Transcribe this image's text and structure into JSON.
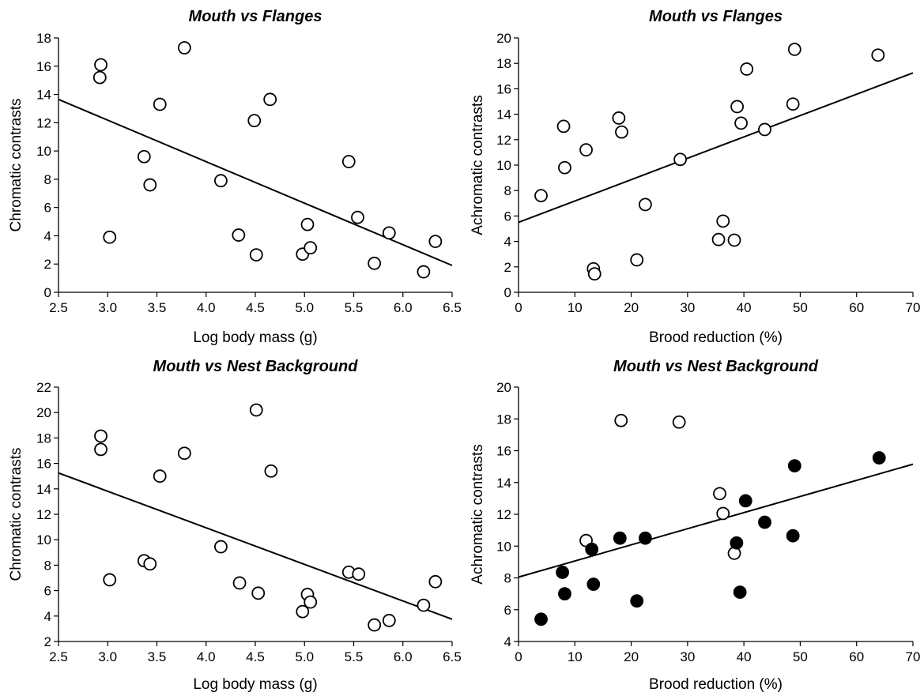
{
  "chart_data": [
    {
      "type": "scatter",
      "title": "Mouth vs Flanges",
      "xlabel": "Log body mass (g)",
      "ylabel": "Chromatic contrasts",
      "xlim": [
        2.5,
        6.5
      ],
      "ylim": [
        0,
        18
      ],
      "xticks": [
        "2.5",
        "3.0",
        "3.5",
        "4.0",
        "4.5",
        "5.0",
        "5.5",
        "6.0",
        "6.5"
      ],
      "yticks": [
        "0",
        "2",
        "4",
        "6",
        "8",
        "10",
        "12",
        "14",
        "16",
        "18"
      ],
      "series": [
        {
          "fill": "open",
          "points": [
            [
              2.93,
              16.1
            ],
            [
              2.92,
              15.2
            ],
            [
              3.02,
              3.9
            ],
            [
              3.37,
              9.6
            ],
            [
              3.43,
              7.6
            ],
            [
              3.53,
              13.3
            ],
            [
              3.78,
              17.3
            ],
            [
              4.15,
              7.9
            ],
            [
              4.33,
              4.05
            ],
            [
              4.49,
              12.15
            ],
            [
              4.51,
              2.65
            ],
            [
              4.65,
              13.65
            ],
            [
              4.98,
              2.7
            ],
            [
              5.03,
              4.8
            ],
            [
              5.06,
              3.15
            ],
            [
              5.45,
              9.25
            ],
            [
              5.54,
              5.3
            ],
            [
              5.71,
              2.05
            ],
            [
              5.86,
              4.2
            ],
            [
              6.21,
              1.45
            ],
            [
              6.33,
              3.6
            ]
          ]
        }
      ],
      "regression": [
        [
          2.5,
          13.65
        ],
        [
          6.5,
          1.9
        ]
      ]
    },
    {
      "type": "scatter",
      "title": "Mouth vs Flanges",
      "xlabel": "Brood reduction (%)",
      "ylabel": "Achromatic contrasts",
      "xlim": [
        0,
        70
      ],
      "ylim": [
        0,
        20
      ],
      "xticks": [
        "0",
        "10",
        "20",
        "30",
        "40",
        "50",
        "60",
        "70"
      ],
      "yticks": [
        "0",
        "2",
        "4",
        "6",
        "8",
        "10",
        "12",
        "14",
        "16",
        "18",
        "20"
      ],
      "series": [
        {
          "fill": "open",
          "points": [
            [
              4,
              7.6
            ],
            [
              8,
              13.05
            ],
            [
              8.2,
              9.8
            ],
            [
              12,
              11.2
            ],
            [
              13.3,
              1.85
            ],
            [
              13.5,
              1.45
            ],
            [
              17.8,
              13.7
            ],
            [
              18.3,
              12.6
            ],
            [
              21,
              2.55
            ],
            [
              22.5,
              6.9
            ],
            [
              28.7,
              10.45
            ],
            [
              35.5,
              4.15
            ],
            [
              36.3,
              5.6
            ],
            [
              38.3,
              4.1
            ],
            [
              38.8,
              14.6
            ],
            [
              39.5,
              13.3
            ],
            [
              40.5,
              17.55
            ],
            [
              43.7,
              12.8
            ],
            [
              48.7,
              14.8
            ],
            [
              49,
              19.1
            ],
            [
              63.8,
              18.65
            ]
          ]
        }
      ],
      "regression": [
        [
          0,
          5.5
        ],
        [
          70,
          17.25
        ]
      ]
    },
    {
      "type": "scatter",
      "title": "Mouth vs Nest Background",
      "xlabel": "Log body mass (g)",
      "ylabel": "Chromatic contrasts",
      "xlim": [
        2.5,
        6.5
      ],
      "ylim": [
        2,
        22
      ],
      "xticks": [
        "2.5",
        "3.0",
        "3.5",
        "4.0",
        "4.5",
        "5.0",
        "5.5",
        "6.0",
        "6.5"
      ],
      "yticks": [
        "2",
        "4",
        "6",
        "8",
        "10",
        "12",
        "14",
        "16",
        "18",
        "20",
        "22"
      ],
      "series": [
        {
          "fill": "open",
          "points": [
            [
              2.93,
              18.15
            ],
            [
              2.93,
              17.1
            ],
            [
              3.02,
              6.85
            ],
            [
              3.37,
              8.35
            ],
            [
              3.43,
              8.1
            ],
            [
              3.53,
              15.0
            ],
            [
              3.78,
              16.8
            ],
            [
              4.15,
              9.45
            ],
            [
              4.34,
              6.6
            ],
            [
              4.51,
              20.2
            ],
            [
              4.53,
              5.8
            ],
            [
              4.66,
              15.4
            ],
            [
              4.98,
              4.35
            ],
            [
              5.03,
              5.7
            ],
            [
              5.06,
              5.1
            ],
            [
              5.45,
              7.45
            ],
            [
              5.55,
              7.3
            ],
            [
              5.71,
              3.3
            ],
            [
              5.86,
              3.65
            ],
            [
              6.21,
              4.85
            ],
            [
              6.33,
              6.7
            ]
          ]
        }
      ],
      "regression": [
        [
          2.5,
          15.25
        ],
        [
          6.5,
          3.75
        ]
      ]
    },
    {
      "type": "scatter",
      "title": "Mouth vs Nest Background",
      "xlabel": "Brood reduction (%)",
      "ylabel": "Achromatic contrasts",
      "xlim": [
        0,
        70
      ],
      "ylim": [
        4,
        20
      ],
      "xticks": [
        "0",
        "10",
        "20",
        "30",
        "40",
        "50",
        "60",
        "70"
      ],
      "yticks": [
        "4",
        "6",
        "8",
        "10",
        "12",
        "14",
        "16",
        "18",
        "20"
      ],
      "series": [
        {
          "fill": "open",
          "points": [
            [
              12,
              10.35
            ],
            [
              18.2,
              17.9
            ],
            [
              28.5,
              17.8
            ],
            [
              35.7,
              13.3
            ],
            [
              36.3,
              12.05
            ],
            [
              38.3,
              9.55
            ]
          ]
        },
        {
          "fill": "filled",
          "points": [
            [
              4,
              5.4
            ],
            [
              7.8,
              8.35
            ],
            [
              8.2,
              7.0
            ],
            [
              13,
              9.8
            ],
            [
              13.3,
              7.6
            ],
            [
              18,
              10.5
            ],
            [
              21,
              6.55
            ],
            [
              22.5,
              10.5
            ],
            [
              38.7,
              10.2
            ],
            [
              39.3,
              7.1
            ],
            [
              40.3,
              12.85
            ],
            [
              43.7,
              11.5
            ],
            [
              48.7,
              10.65
            ],
            [
              49,
              15.05
            ],
            [
              64,
              15.55
            ]
          ]
        }
      ],
      "regression": [
        [
          0,
          8.05
        ],
        [
          70,
          15.15
        ]
      ]
    }
  ]
}
